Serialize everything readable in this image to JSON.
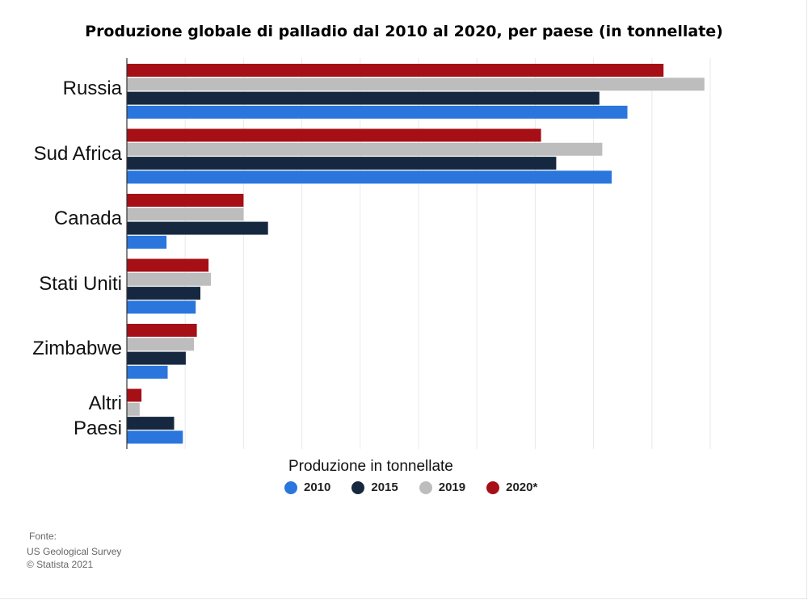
{
  "chart_data": {
    "type": "bar",
    "orientation": "horizontal",
    "title": "Produzione globale di palladio dal 2010 al 2020, per paese (in tonnellate)",
    "xlabel": "Produzione in tonnellate",
    "ylabel": "",
    "categories": [
      "Russia",
      "Sud Africa",
      "Canada",
      "Stati Uniti",
      "Zimbabwe",
      "Altri\nPaesi"
    ],
    "series": [
      {
        "name": "2020*",
        "color": "#a50f15",
        "values": [
          92,
          71,
          20,
          14,
          12,
          2.5
        ]
      },
      {
        "name": "2019",
        "color": "#bdbdbd",
        "values": [
          99,
          81.5,
          20,
          14.4,
          11.5,
          2.2
        ]
      },
      {
        "name": "2015",
        "color": "#16283f",
        "values": [
          81,
          73.6,
          24.2,
          12.6,
          10.1,
          8.1
        ]
      },
      {
        "name": "2010",
        "color": "#2a76dd",
        "values": [
          85.8,
          83.1,
          6.8,
          11.8,
          7,
          9.6
        ]
      }
    ],
    "legend_order": [
      "2010",
      "2015",
      "2019",
      "2020*"
    ],
    "xlim": [
      0,
      110
    ],
    "grid": true,
    "legend_position": "bottom"
  },
  "source": {
    "label": "Fonte:",
    "lines": [
      "US Geological Survey",
      "© Statista 2021"
    ]
  }
}
